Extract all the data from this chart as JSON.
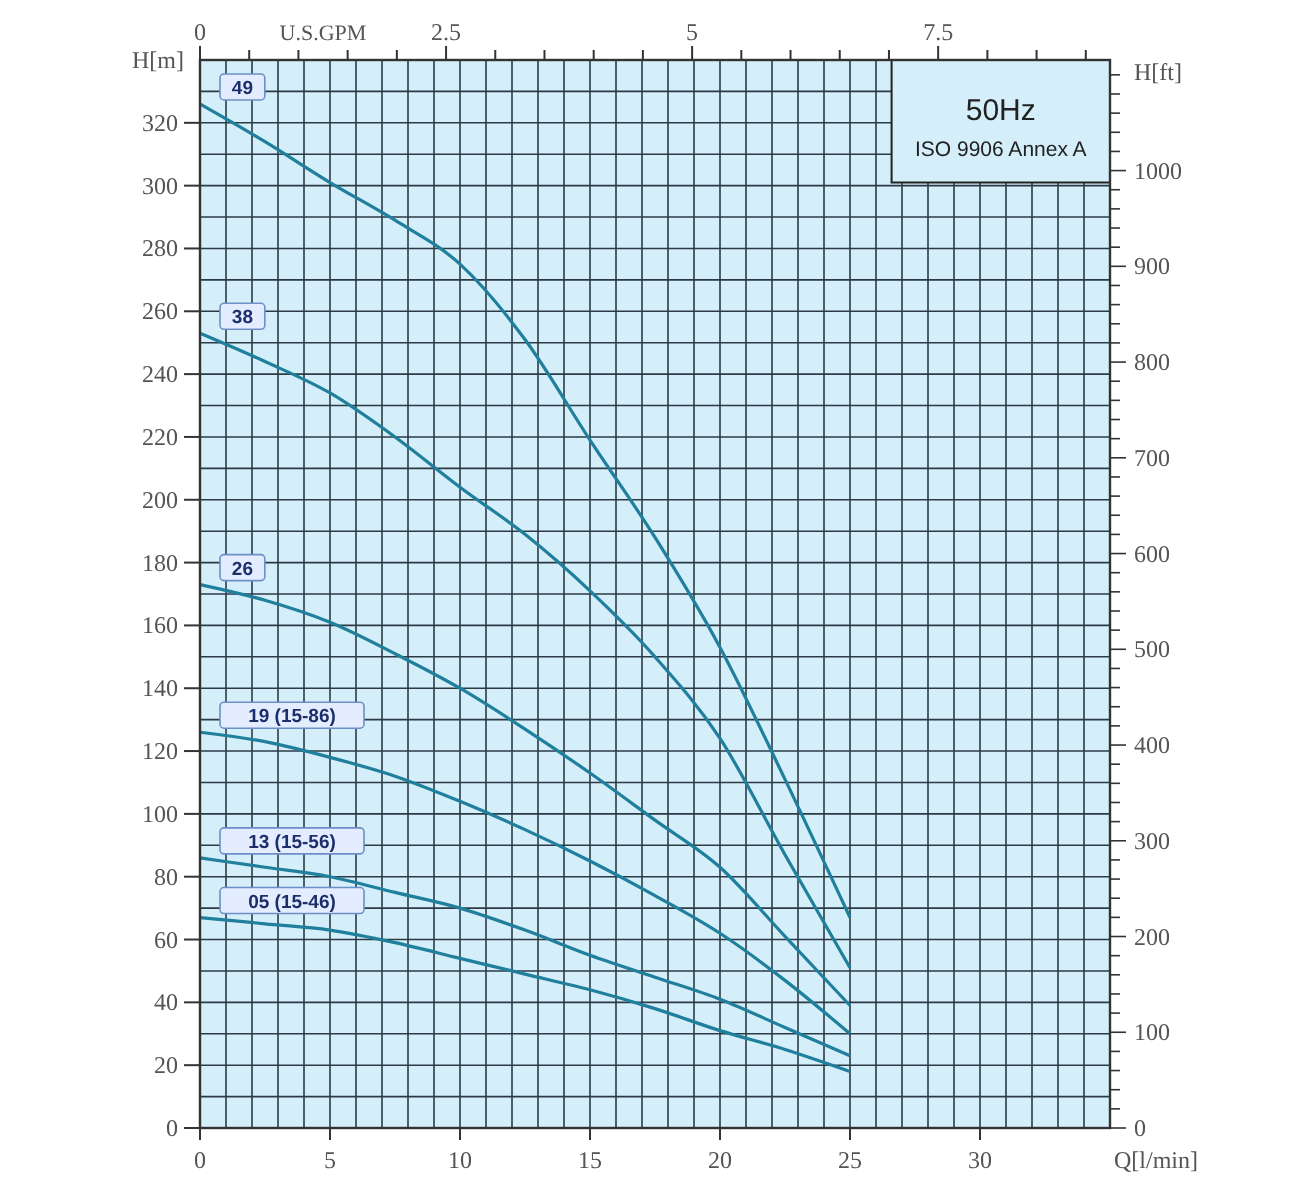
{
  "chart_data": {
    "type": "line",
    "xlabel": "Q[l/min]",
    "ylabel": "H[m]",
    "y2label": "H[ft]",
    "x2label": "U.S.GPM",
    "x": [
      0,
      2.5,
      5,
      7.5,
      10,
      12.5,
      15,
      17.5,
      20,
      22.5,
      25
    ],
    "series": [
      {
        "name": "49",
        "color": "#1f7f9c",
        "values": [
          326,
          314,
          301,
          289,
          275,
          251,
          219,
          188,
          153,
          111,
          67
        ]
      },
      {
        "name": "38",
        "color": "#1f7f9c",
        "values": [
          253,
          244,
          234,
          220,
          204,
          189,
          171,
          150,
          124,
          87,
          51
        ]
      },
      {
        "name": "26",
        "color": "#1f7f9c",
        "values": [
          173,
          168,
          161,
          151,
          140,
          127,
          113,
          98,
          83,
          61,
          39
        ]
      },
      {
        "name": "19 (15-86)",
        "color": "#1f7f9c",
        "values": [
          126,
          123,
          118,
          112,
          104,
          95,
          85,
          74,
          62,
          47,
          30
        ]
      },
      {
        "name": "13 (15-56)",
        "color": "#1f7f9c",
        "values": [
          86,
          83,
          80,
          75,
          70,
          63,
          55,
          48,
          41,
          32,
          23
        ]
      },
      {
        "name": "05 (15-46)",
        "color": "#1f7f9c",
        "values": [
          67,
          65,
          63,
          59,
          54,
          49,
          44,
          38,
          31,
          25,
          18
        ]
      }
    ],
    "xlim": [
      0,
      35
    ],
    "xticks": [
      0,
      {
        "value": 1,
        "label": null
      },
      {
        "value": 2,
        "label": null
      },
      {
        "value": 3,
        "label": null
      },
      {
        "value": 4,
        "label": null
      },
      5,
      {
        "value": 6,
        "label": null
      },
      {
        "value": 7,
        "label": null
      },
      {
        "value": 8,
        "label": null
      },
      {
        "value": 9,
        "label": null
      },
      10,
      {
        "value": 11,
        "label": null
      },
      {
        "value": 12,
        "label": null
      },
      {
        "value": 13,
        "label": null
      },
      {
        "value": 14,
        "label": null
      },
      15,
      {
        "value": 16,
        "label": null
      },
      {
        "value": 17,
        "label": null
      },
      {
        "value": 18,
        "label": null
      },
      {
        "value": 19,
        "label": null
      },
      20,
      {
        "value": 21,
        "label": null
      },
      {
        "value": 22,
        "label": null
      },
      {
        "value": 23,
        "label": null
      },
      {
        "value": 24,
        "label": null
      },
      25,
      {
        "value": 26,
        "label": null
      },
      {
        "value": 27,
        "label": null
      },
      {
        "value": 28,
        "label": null
      },
      {
        "value": 29,
        "label": null
      },
      30,
      {
        "value": 31,
        "label": null
      },
      {
        "value": 32,
        "label": null
      },
      {
        "value": 33,
        "label": null
      },
      {
        "value": 34,
        "label": null
      },
      {
        "value": 35,
        "label": null
      }
    ],
    "ylim": [
      0,
      340
    ],
    "yticks": [
      0,
      {
        "value": 10,
        "label": null
      },
      20,
      {
        "value": 30,
        "label": null
      },
      40,
      {
        "value": 50,
        "label": null
      },
      60,
      {
        "value": 70,
        "label": null
      },
      80,
      {
        "value": 90,
        "label": null
      },
      100,
      {
        "value": 110,
        "label": null
      },
      120,
      {
        "value": 130,
        "label": null
      },
      140,
      {
        "value": 150,
        "label": null
      },
      160,
      {
        "value": 170,
        "label": null
      },
      180,
      {
        "value": 190,
        "label": null
      },
      200,
      {
        "value": 210,
        "label": null
      },
      220,
      {
        "value": 230,
        "label": null
      },
      240,
      {
        "value": 250,
        "label": null
      },
      260,
      {
        "value": 270,
        "label": null
      },
      280,
      {
        "value": 290,
        "label": null
      },
      300,
      {
        "value": 310,
        "label": null
      },
      320,
      {
        "value": 330,
        "label": null
      },
      {
        "value": 340,
        "label": null
      }
    ],
    "y2lim": [
      0,
      1115.5
    ],
    "y2ticks": [
      0,
      {
        "value": 20,
        "label": null
      },
      {
        "value": 40,
        "label": null
      },
      {
        "value": 60,
        "label": null
      },
      {
        "value": 80,
        "label": null
      },
      100,
      {
        "value": 120,
        "label": null
      },
      {
        "value": 140,
        "label": null
      },
      {
        "value": 160,
        "label": null
      },
      {
        "value": 180,
        "label": null
      },
      200,
      {
        "value": 220,
        "label": null
      },
      {
        "value": 240,
        "label": null
      },
      {
        "value": 260,
        "label": null
      },
      {
        "value": 280,
        "label": null
      },
      300,
      {
        "value": 320,
        "label": null
      },
      {
        "value": 340,
        "label": null
      },
      {
        "value": 360,
        "label": null
      },
      {
        "value": 380,
        "label": null
      },
      400,
      {
        "value": 420,
        "label": null
      },
      {
        "value": 440,
        "label": null
      },
      {
        "value": 460,
        "label": null
      },
      {
        "value": 480,
        "label": null
      },
      500,
      {
        "value": 520,
        "label": null
      },
      {
        "value": 540,
        "label": null
      },
      {
        "value": 560,
        "label": null
      },
      {
        "value": 580,
        "label": null
      },
      600,
      {
        "value": 620,
        "label": null
      },
      {
        "value": 640,
        "label": null
      },
      {
        "value": 660,
        "label": null
      },
      {
        "value": 680,
        "label": null
      },
      700,
      {
        "value": 720,
        "label": null
      },
      {
        "value": 740,
        "label": null
      },
      {
        "value": 760,
        "label": null
      },
      {
        "value": 780,
        "label": null
      },
      800,
      {
        "value": 820,
        "label": null
      },
      {
        "value": 840,
        "label": null
      },
      {
        "value": 860,
        "label": null
      },
      {
        "value": 880,
        "label": null
      },
      900,
      {
        "value": 920,
        "label": null
      },
      {
        "value": 940,
        "label": null
      },
      {
        "value": 960,
        "label": null
      },
      {
        "value": 980,
        "label": null
      },
      1000,
      {
        "value": 1020,
        "label": null
      },
      {
        "value": 1040,
        "label": null
      },
      {
        "value": 1060,
        "label": null
      },
      {
        "value": 1080,
        "label": null
      },
      {
        "value": 1100,
        "label": null
      }
    ],
    "x2lim": [
      0,
      9.246
    ],
    "x2ticks": [
      0,
      {
        "value": 0.5,
        "label": null
      },
      {
        "value": 1,
        "label": null
      },
      {
        "value": 1.5,
        "label": null
      },
      {
        "value": 2,
        "label": null
      },
      2.5,
      {
        "value": 3,
        "label": null
      },
      {
        "value": 3.5,
        "label": null
      },
      {
        "value": 4,
        "label": null
      },
      {
        "value": 4.5,
        "label": null
      },
      5,
      {
        "value": 5.5,
        "label": null
      },
      {
        "value": 6,
        "label": null
      },
      {
        "value": 6.5,
        "label": null
      },
      {
        "value": 7,
        "label": null
      },
      7.5,
      {
        "value": 8,
        "label": null
      },
      {
        "value": 8.5,
        "label": null
      },
      {
        "value": 9,
        "label": null
      }
    ],
    "grid": true,
    "marker": "none",
    "line_style": "solid",
    "annotations": [
      "50Hz",
      "ISO 9906 Annex A"
    ]
  }
}
